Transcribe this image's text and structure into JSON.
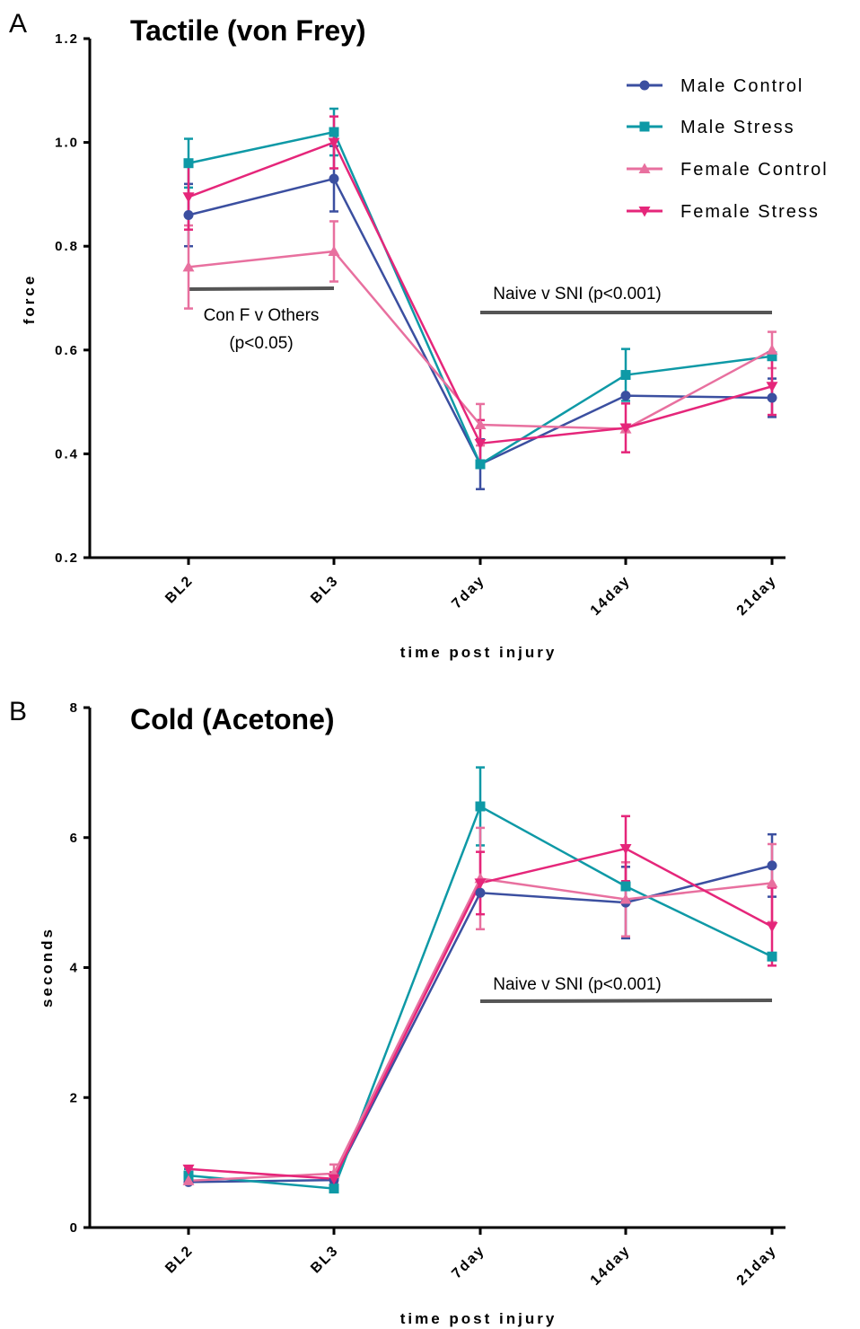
{
  "figure": {
    "panels": [
      {
        "letter": "A"
      },
      {
        "letter": "B"
      }
    ]
  },
  "colors": {
    "male_control": "#3b4fa0",
    "male_stress": "#0e99a6",
    "female_control": "#e8709f",
    "female_stress": "#e5267a",
    "annotation_bar": "#555555"
  },
  "chart_data": [
    {
      "type": "line",
      "title": "Tactile (von Frey)",
      "xlabel": "time post injury",
      "ylabel": "force",
      "categories": [
        "BL2",
        "BL3",
        "7day",
        "14day",
        "21day"
      ],
      "ylim": [
        0.2,
        1.2
      ],
      "yticks": [
        "0.2",
        "0.4",
        "0.6",
        "0.8",
        "1.0",
        "1.2"
      ],
      "grid": false,
      "legend": "top-right",
      "series": [
        {
          "name": "Male Control",
          "marker": "circle",
          "values": [
            0.86,
            0.93,
            0.38,
            0.512,
            0.508
          ],
          "err": [
            0.06,
            0.063,
            0.048,
            0.0,
            0.037
          ]
        },
        {
          "name": "Male Stress",
          "marker": "square",
          "values": [
            0.96,
            1.02,
            0.38,
            0.552,
            0.588
          ],
          "err": [
            0.047,
            0.045,
            0.0,
            0.05,
            0.0
          ]
        },
        {
          "name": "Female Control",
          "marker": "triangle-up",
          "values": [
            0.76,
            0.79,
            0.456,
            0.448,
            0.6
          ],
          "err": [
            0.08,
            0.058,
            0.04,
            0.0,
            0.035
          ]
        },
        {
          "name": "Female Stress",
          "marker": "triangle-down",
          "values": [
            0.895,
            1.0,
            0.42,
            0.45,
            0.53
          ],
          "err": [
            0.063,
            0.05,
            0.045,
            0.047,
            0.055
          ]
        }
      ],
      "annotations": [
        {
          "text_lines": [
            "Con F v Others",
            "(p<0.05)"
          ],
          "from": "BL2",
          "to": "BL3"
        },
        {
          "text_lines": [
            "Naive v SNI (p<0.001)"
          ],
          "from": "7day",
          "to": "21day"
        }
      ]
    },
    {
      "type": "line",
      "title": "Cold (Acetone)",
      "xlabel": "time post injury",
      "ylabel": "seconds",
      "categories": [
        "BL2",
        "BL3",
        "7day",
        "14day",
        "21day"
      ],
      "ylim": [
        0,
        8
      ],
      "yticks": [
        "0",
        "2",
        "4",
        "6",
        "8"
      ],
      "grid": false,
      "series": [
        {
          "name": "Male Control",
          "marker": "circle",
          "values": [
            0.7,
            0.73,
            5.15,
            5.0,
            5.57
          ],
          "err": [
            0.0,
            0.0,
            0.0,
            0.55,
            0.48
          ]
        },
        {
          "name": "Male Stress",
          "marker": "square",
          "values": [
            0.8,
            0.6,
            6.48,
            5.25,
            4.17
          ],
          "err": [
            0.1,
            0.0,
            0.6,
            0.0,
            0.0
          ]
        },
        {
          "name": "Female Control",
          "marker": "triangle-up",
          "values": [
            0.72,
            0.83,
            5.37,
            5.05,
            5.3
          ],
          "err": [
            0.0,
            0.14,
            0.78,
            0.57,
            0.6
          ]
        },
        {
          "name": "Female Stress",
          "marker": "triangle-down",
          "values": [
            0.9,
            0.75,
            5.3,
            5.83,
            4.63
          ],
          "err": [
            0.05,
            0.1,
            0.48,
            0.5,
            0.6
          ]
        }
      ],
      "annotations": [
        {
          "text_lines": [
            "Naive v SNI (p<0.001)"
          ],
          "from": "7day",
          "to": "21day"
        }
      ]
    }
  ]
}
